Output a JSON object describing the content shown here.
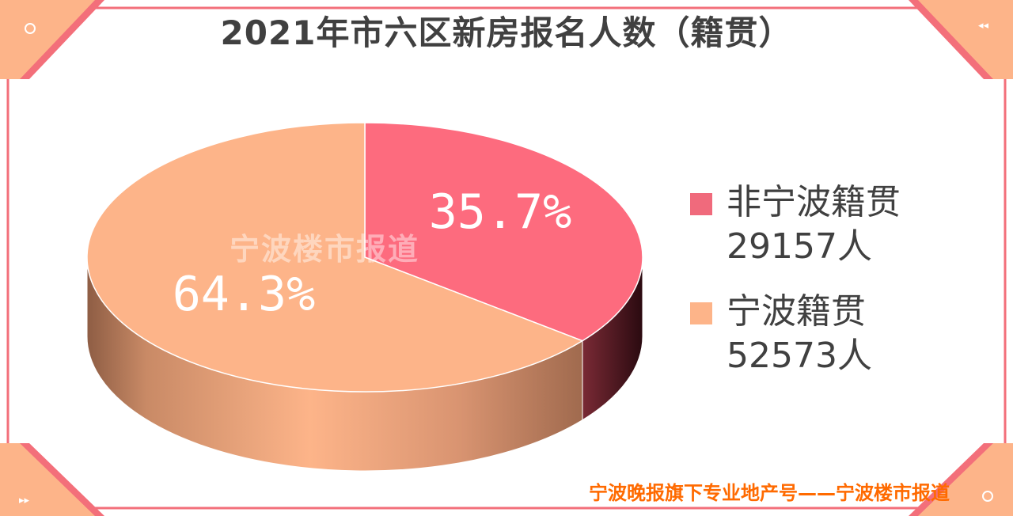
{
  "title": "2021年市六区新房报名人数（籍贯）",
  "watermark": "宁波楼市报道",
  "footer": "宁波晚报旗下专业地产号——宁波楼市报道",
  "colors": {
    "non_local": "#fd6b7e",
    "local": "#fdb489",
    "frame": "#f36f7a",
    "corner": "#fdb489",
    "footer": "#ff6a00"
  },
  "chart_data": {
    "type": "pie",
    "title": "2021年市六区新房报名人数（籍贯）",
    "labels": [
      "非宁波籍贯",
      "宁波籍贯"
    ],
    "values": [
      29157,
      52573
    ],
    "percent_labels": [
      "35.7%",
      "64.3%"
    ],
    "percents": [
      35.7,
      64.3
    ],
    "legend_position": "right",
    "legend": [
      {
        "name": "非宁波籍贯",
        "count": "29157人"
      },
      {
        "name": "宁波籍贯",
        "count": "52573人"
      }
    ]
  }
}
